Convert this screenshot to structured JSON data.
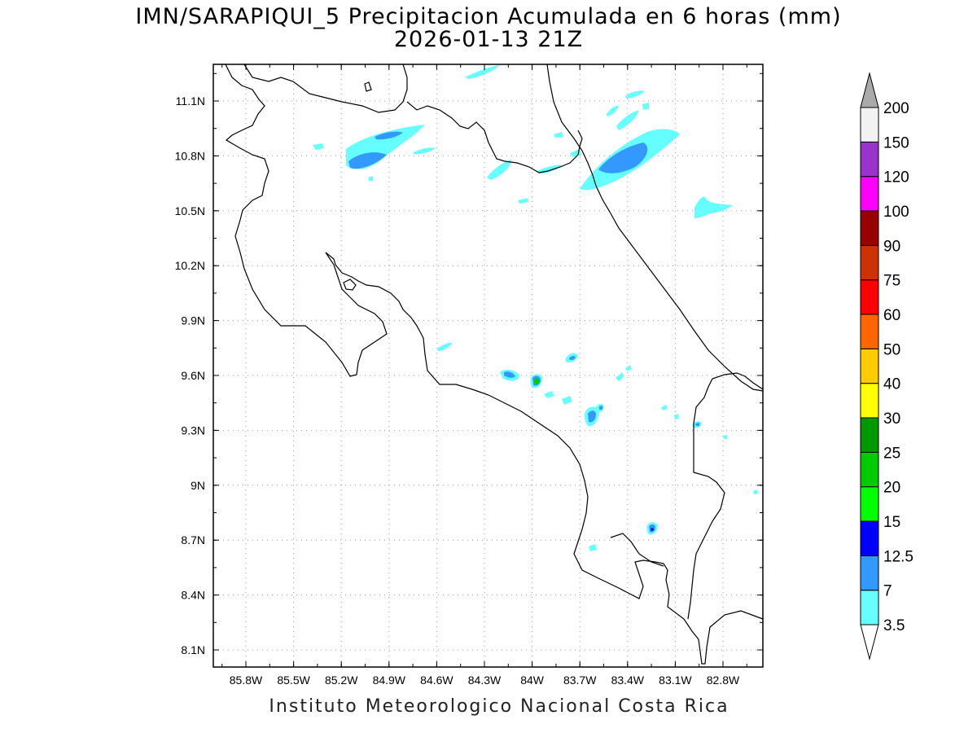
{
  "title_line1": "IMN/SARAPIQUI_5 Precipitacion Acumulada en 6 horas (mm)",
  "title_line2": "2026-01-13 21Z",
  "footer": "Instituto Meteorologico Nacional Costa Rica",
  "lat_ticks": [
    "11.1N",
    "10.8N",
    "10.5N",
    "10.2N",
    "9.9N",
    "9.6N",
    "9.3N",
    "9N",
    "8.7N",
    "8.4N",
    "8.1N"
  ],
  "lon_ticks": [
    "85.8W",
    "85.5W",
    "85.2W",
    "84.9W",
    "84.6W",
    "84.3W",
    "84W",
    "83.7W",
    "83.4W",
    "83.1W",
    "82.8W"
  ],
  "colorbar": {
    "labels": [
      "3.5",
      "7",
      "12.5",
      "15",
      "20",
      "25",
      "30",
      "40",
      "50",
      "60",
      "75",
      "90",
      "100",
      "120",
      "150",
      "200"
    ],
    "colors": [
      "#66ffff",
      "#3399ff",
      "#0000ff",
      "#00ff00",
      "#00cc00",
      "#009900",
      "#ffff00",
      "#ffcc00",
      "#ff6600",
      "#ff0000",
      "#cc3300",
      "#990000",
      "#ff00ff",
      "#9933cc",
      "#f2f2f2",
      "#aaaaaa"
    ]
  }
}
